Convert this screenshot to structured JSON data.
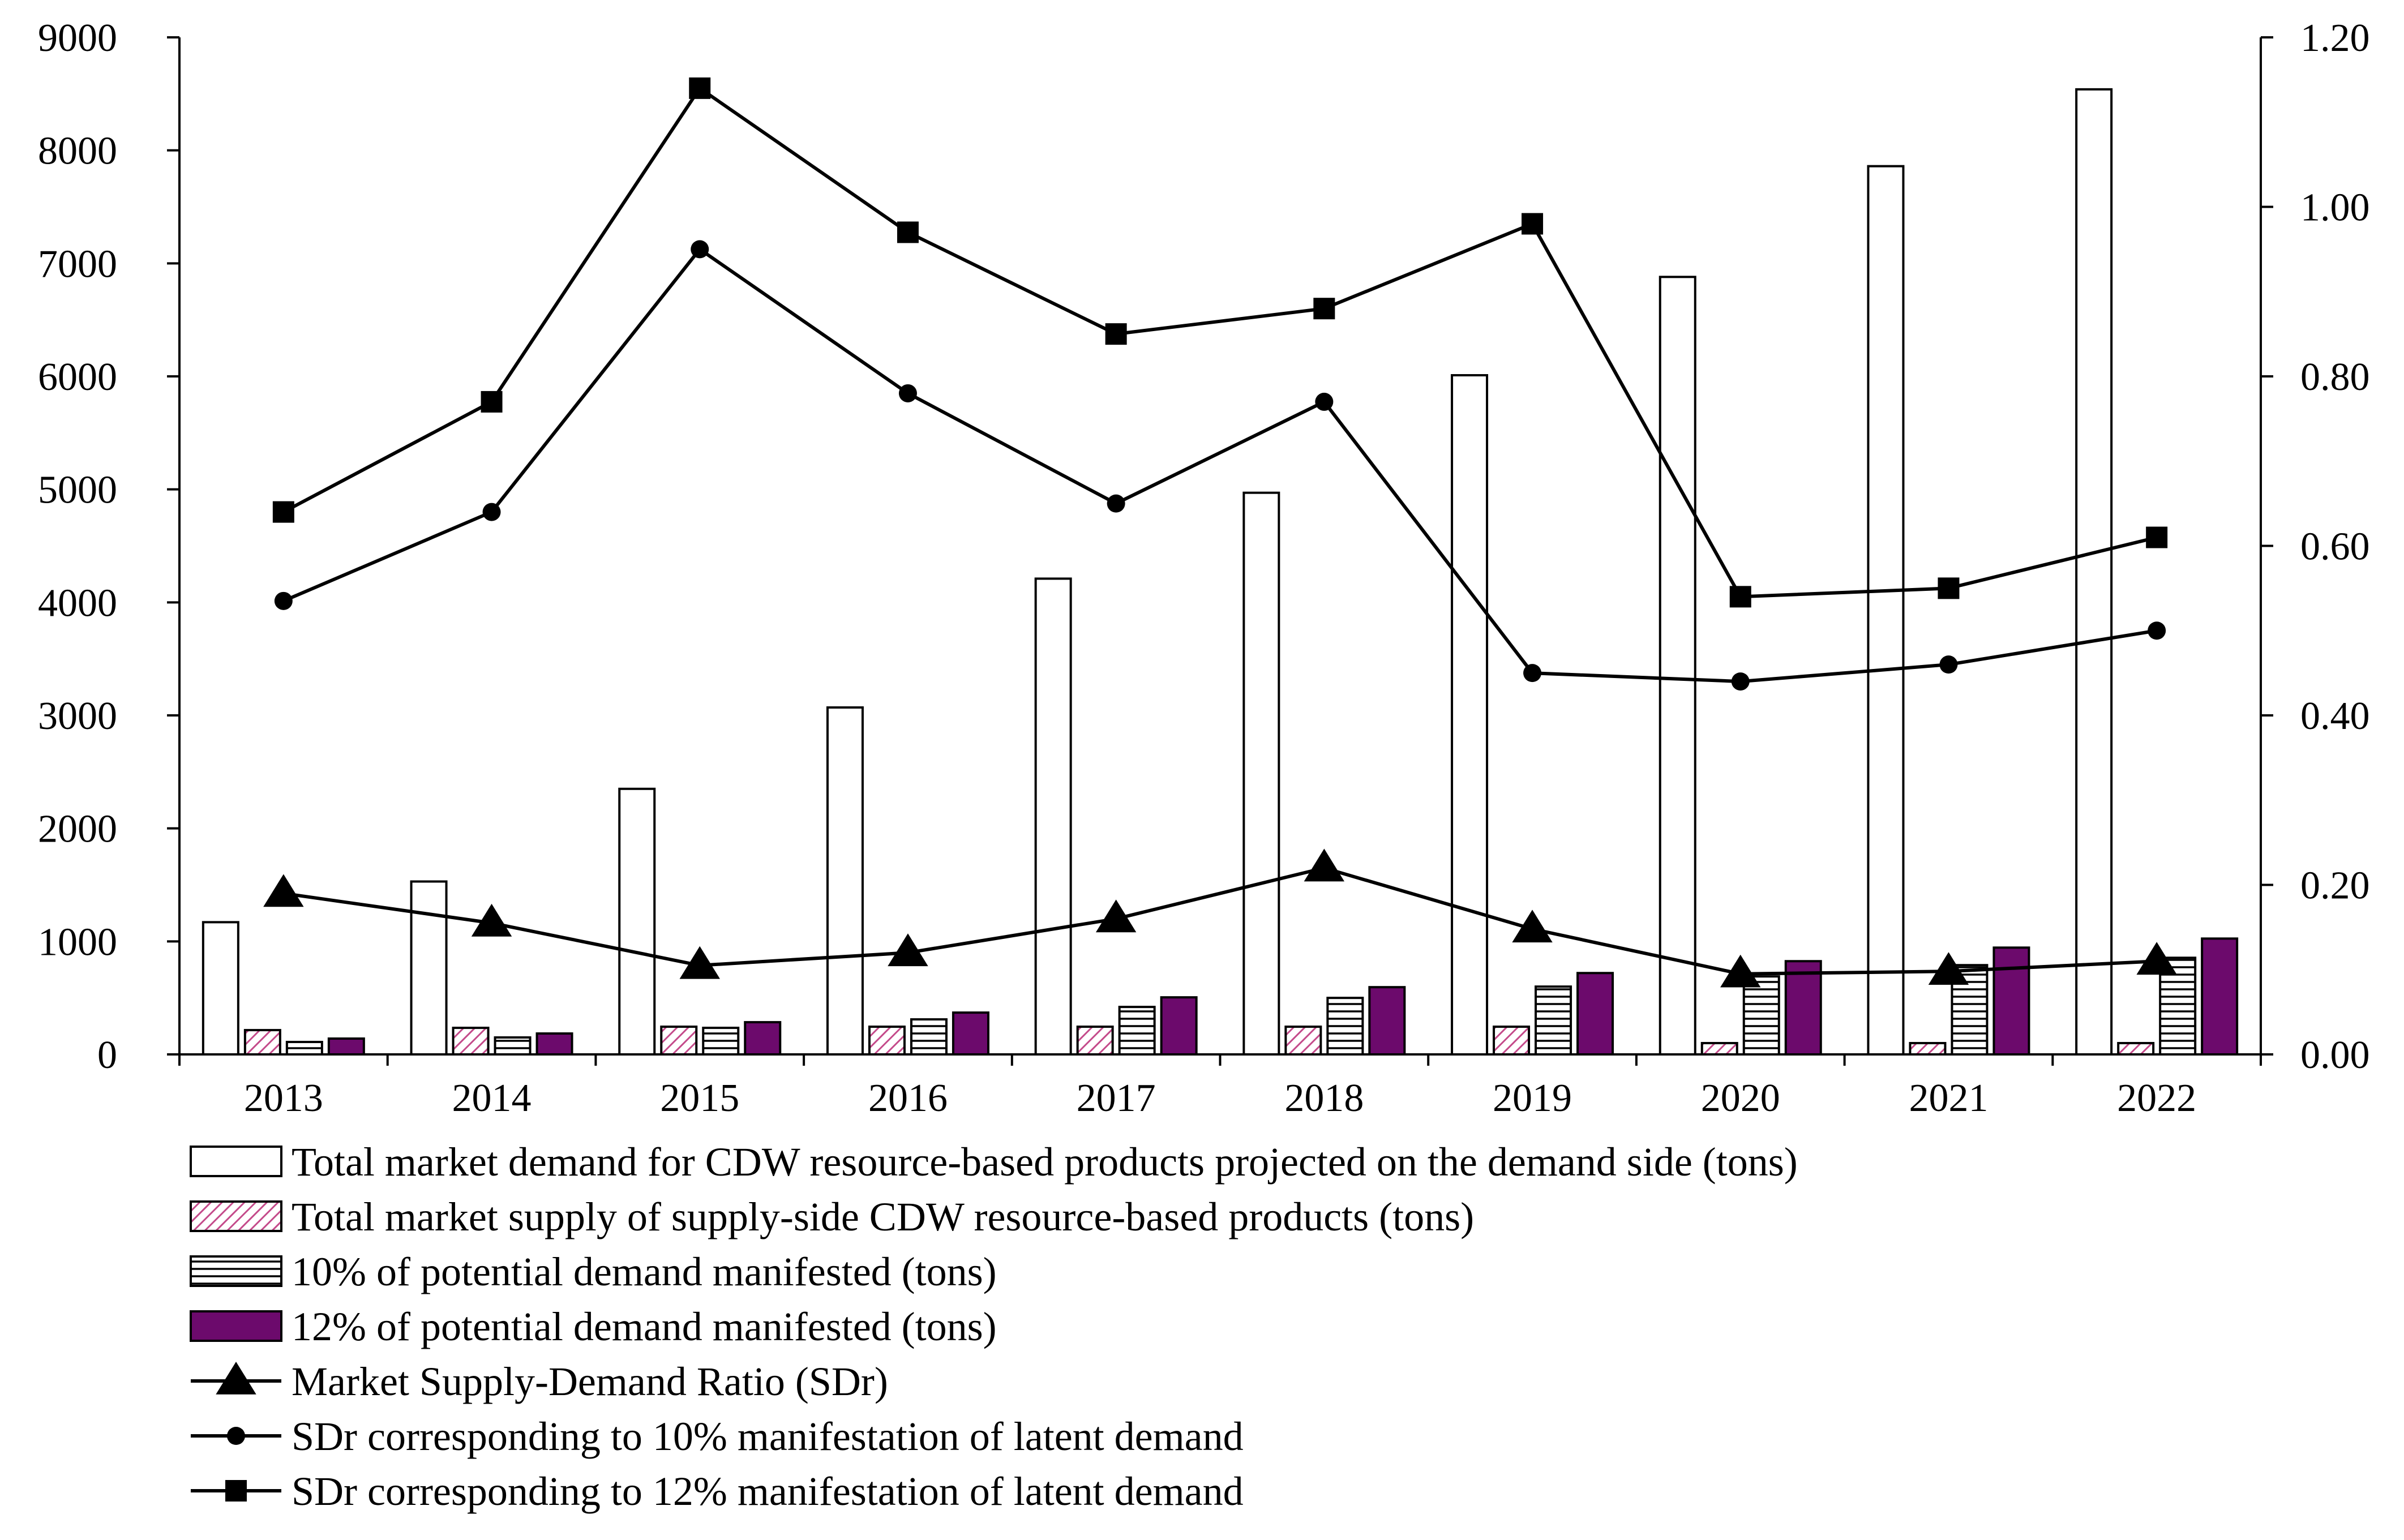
{
  "chart_data": {
    "type": "bar",
    "title": "",
    "xlabel": "",
    "ylabel": "",
    "y2label": "",
    "categories": [
      "2013",
      "2014",
      "2015",
      "2016",
      "2017",
      "2018",
      "2019",
      "2020",
      "2021",
      "2022"
    ],
    "ylim": [
      0,
      9000
    ],
    "y2lim": [
      0,
      1.2
    ],
    "yticks": [
      "0",
      "1000",
      "2000",
      "3000",
      "4000",
      "5000",
      "6000",
      "7000",
      "8000",
      "9000"
    ],
    "y2ticks": [
      "0.00",
      "0.20",
      "0.40",
      "0.60",
      "0.80",
      "1.00",
      "1.20"
    ],
    "grid": false,
    "legend_position": "bottom",
    "bar_series": [
      {
        "name": "Total market demand for CDW resource-based products projected on the demand side (tons)",
        "style": "white",
        "values": [
          1170,
          1530,
          2350,
          3070,
          4210,
          4970,
          6010,
          6880,
          7860,
          8540
        ]
      },
      {
        "name": "Total market supply of supply-side CDW resource-based products (tons)",
        "style": "pink-hatch",
        "values": [
          215,
          235,
          245,
          245,
          245,
          245,
          245,
          100,
          100,
          100
        ]
      },
      {
        "name": "10% of potential demand manifested (tons)",
        "style": "horizontal-stripes",
        "values": [
          110,
          150,
          235,
          310,
          420,
          500,
          600,
          690,
          790,
          855
        ]
      },
      {
        "name": "12% of potential demand manifested (tons)",
        "style": "purple",
        "values": [
          140,
          185,
          285,
          370,
          505,
          595,
          720,
          825,
          945,
          1025
        ]
      }
    ],
    "line_series": [
      {
        "name": "Market Supply-Demand Ratio (SDr)",
        "marker": "triangle",
        "axis": "right",
        "values": [
          0.19,
          0.155,
          0.105,
          0.12,
          0.16,
          0.22,
          0.148,
          0.095,
          0.098,
          0.11
        ]
      },
      {
        "name": "SDr corresponding to 10% manifestation of latent demand",
        "marker": "circle",
        "axis": "right",
        "values": [
          0.535,
          0.64,
          0.95,
          0.78,
          0.65,
          0.77,
          0.45,
          0.44,
          0.46,
          0.5
        ]
      },
      {
        "name": "SDr corresponding to 12% manifestation of latent demand",
        "marker": "square",
        "axis": "right",
        "values": [
          0.64,
          0.77,
          1.14,
          0.97,
          0.85,
          0.88,
          0.98,
          0.54,
          0.55,
          0.61
        ]
      }
    ],
    "colors": {
      "axis": "#000000",
      "bar_white": "#ffffff",
      "bar_pink_hatch": "#c44a8a",
      "bar_purple": "#6c0a6c",
      "line": "#000000"
    }
  }
}
